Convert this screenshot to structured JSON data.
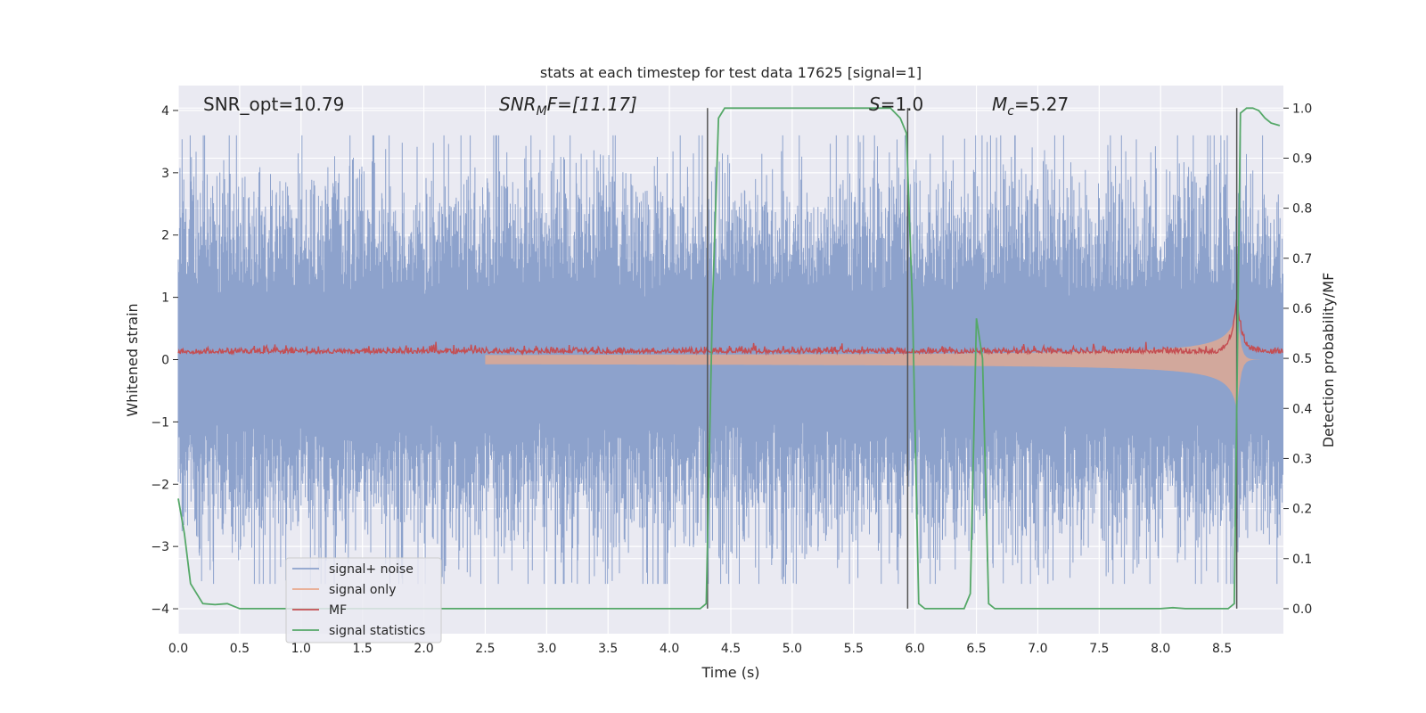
{
  "chart_data": {
    "type": "line",
    "title": "stats at each timestep for test data 17625 [signal=1]",
    "xlabel": "Time (s)",
    "ylabel": "Whitened strain",
    "y2label": "Detection probability/MF",
    "xlim": [
      0.0,
      9.0
    ],
    "ylim": [
      -4.4,
      4.4
    ],
    "y2lim": [
      -0.05,
      1.045
    ],
    "x_ticks": [
      "0.0",
      "0.5",
      "1.0",
      "1.5",
      "2.0",
      "2.5",
      "3.0",
      "3.5",
      "4.0",
      "4.5",
      "5.0",
      "5.5",
      "6.0",
      "6.5",
      "7.0",
      "7.5",
      "8.0",
      "8.5"
    ],
    "y_ticks": [
      "4",
      "3",
      "2",
      "1",
      "0",
      "−1",
      "−2",
      "−3",
      "−4"
    ],
    "y2_ticks": [
      "1.0",
      "0.9",
      "0.8",
      "0.7",
      "0.6",
      "0.5",
      "0.4",
      "0.3",
      "0.2",
      "0.1",
      "0.0"
    ],
    "grid": true,
    "legend_position": "lower-left",
    "annotations": {
      "snr_opt": "SNR_opt=10.79",
      "snr_mf_base": "SNR",
      "snr_mf_sub": "M",
      "snr_mf_tail": "F=[11.17]",
      "s_base": "S",
      "s_tail": "=1.0",
      "mc_base": "M",
      "mc_sub": "c",
      "mc_tail": "=5.27"
    },
    "series": [
      {
        "name": "signal+ noise",
        "color": "#8da2cc",
        "description_values": {
          "amplitude_range": [
            -3.6,
            3.6
          ]
        }
      },
      {
        "name": "signal only",
        "color": "#e9a98c",
        "chirp_start_time": 2.5,
        "merger_time": 8.62,
        "peak_amplitude": 1.0
      },
      {
        "name": "MF",
        "color": "#c44e52",
        "baseline_probability": 0.51,
        "peak_time": 8.62,
        "peak_probability": 0.62
      },
      {
        "name": "signal statistics",
        "color": "#55a868",
        "x": [
          0.0,
          0.05,
          0.1,
          0.2,
          0.3,
          0.4,
          0.5,
          1.0,
          2.0,
          3.0,
          4.0,
          4.25,
          4.3,
          4.35,
          4.4,
          4.45,
          4.5,
          5.0,
          5.5,
          5.8,
          5.88,
          5.93,
          5.98,
          6.03,
          6.08,
          6.2,
          6.3,
          6.4,
          6.45,
          6.5,
          6.55,
          6.6,
          6.65,
          6.7,
          7.0,
          7.5,
          8.0,
          8.1,
          8.2,
          8.5,
          8.55,
          8.6,
          8.65,
          8.7,
          8.75,
          8.8,
          8.85,
          8.9,
          8.97
        ],
        "values": [
          0.22,
          0.15,
          0.05,
          0.01,
          0.008,
          0.01,
          0.0,
          0.0,
          0.0,
          0.0,
          0.0,
          0.0,
          0.01,
          0.6,
          0.98,
          1.0,
          1.0,
          1.0,
          1.0,
          1.0,
          0.98,
          0.95,
          0.6,
          0.01,
          0.0,
          0.0,
          0.0,
          0.0,
          0.03,
          0.58,
          0.5,
          0.01,
          0.0,
          0.0,
          0.0,
          0.0,
          0.0,
          0.002,
          0.0,
          0.0,
          0.0,
          0.01,
          0.99,
          1.0,
          1.0,
          0.995,
          0.98,
          0.97,
          0.965
        ]
      }
    ],
    "vertical_markers_x": [
      4.31,
      5.94,
      8.62
    ]
  }
}
